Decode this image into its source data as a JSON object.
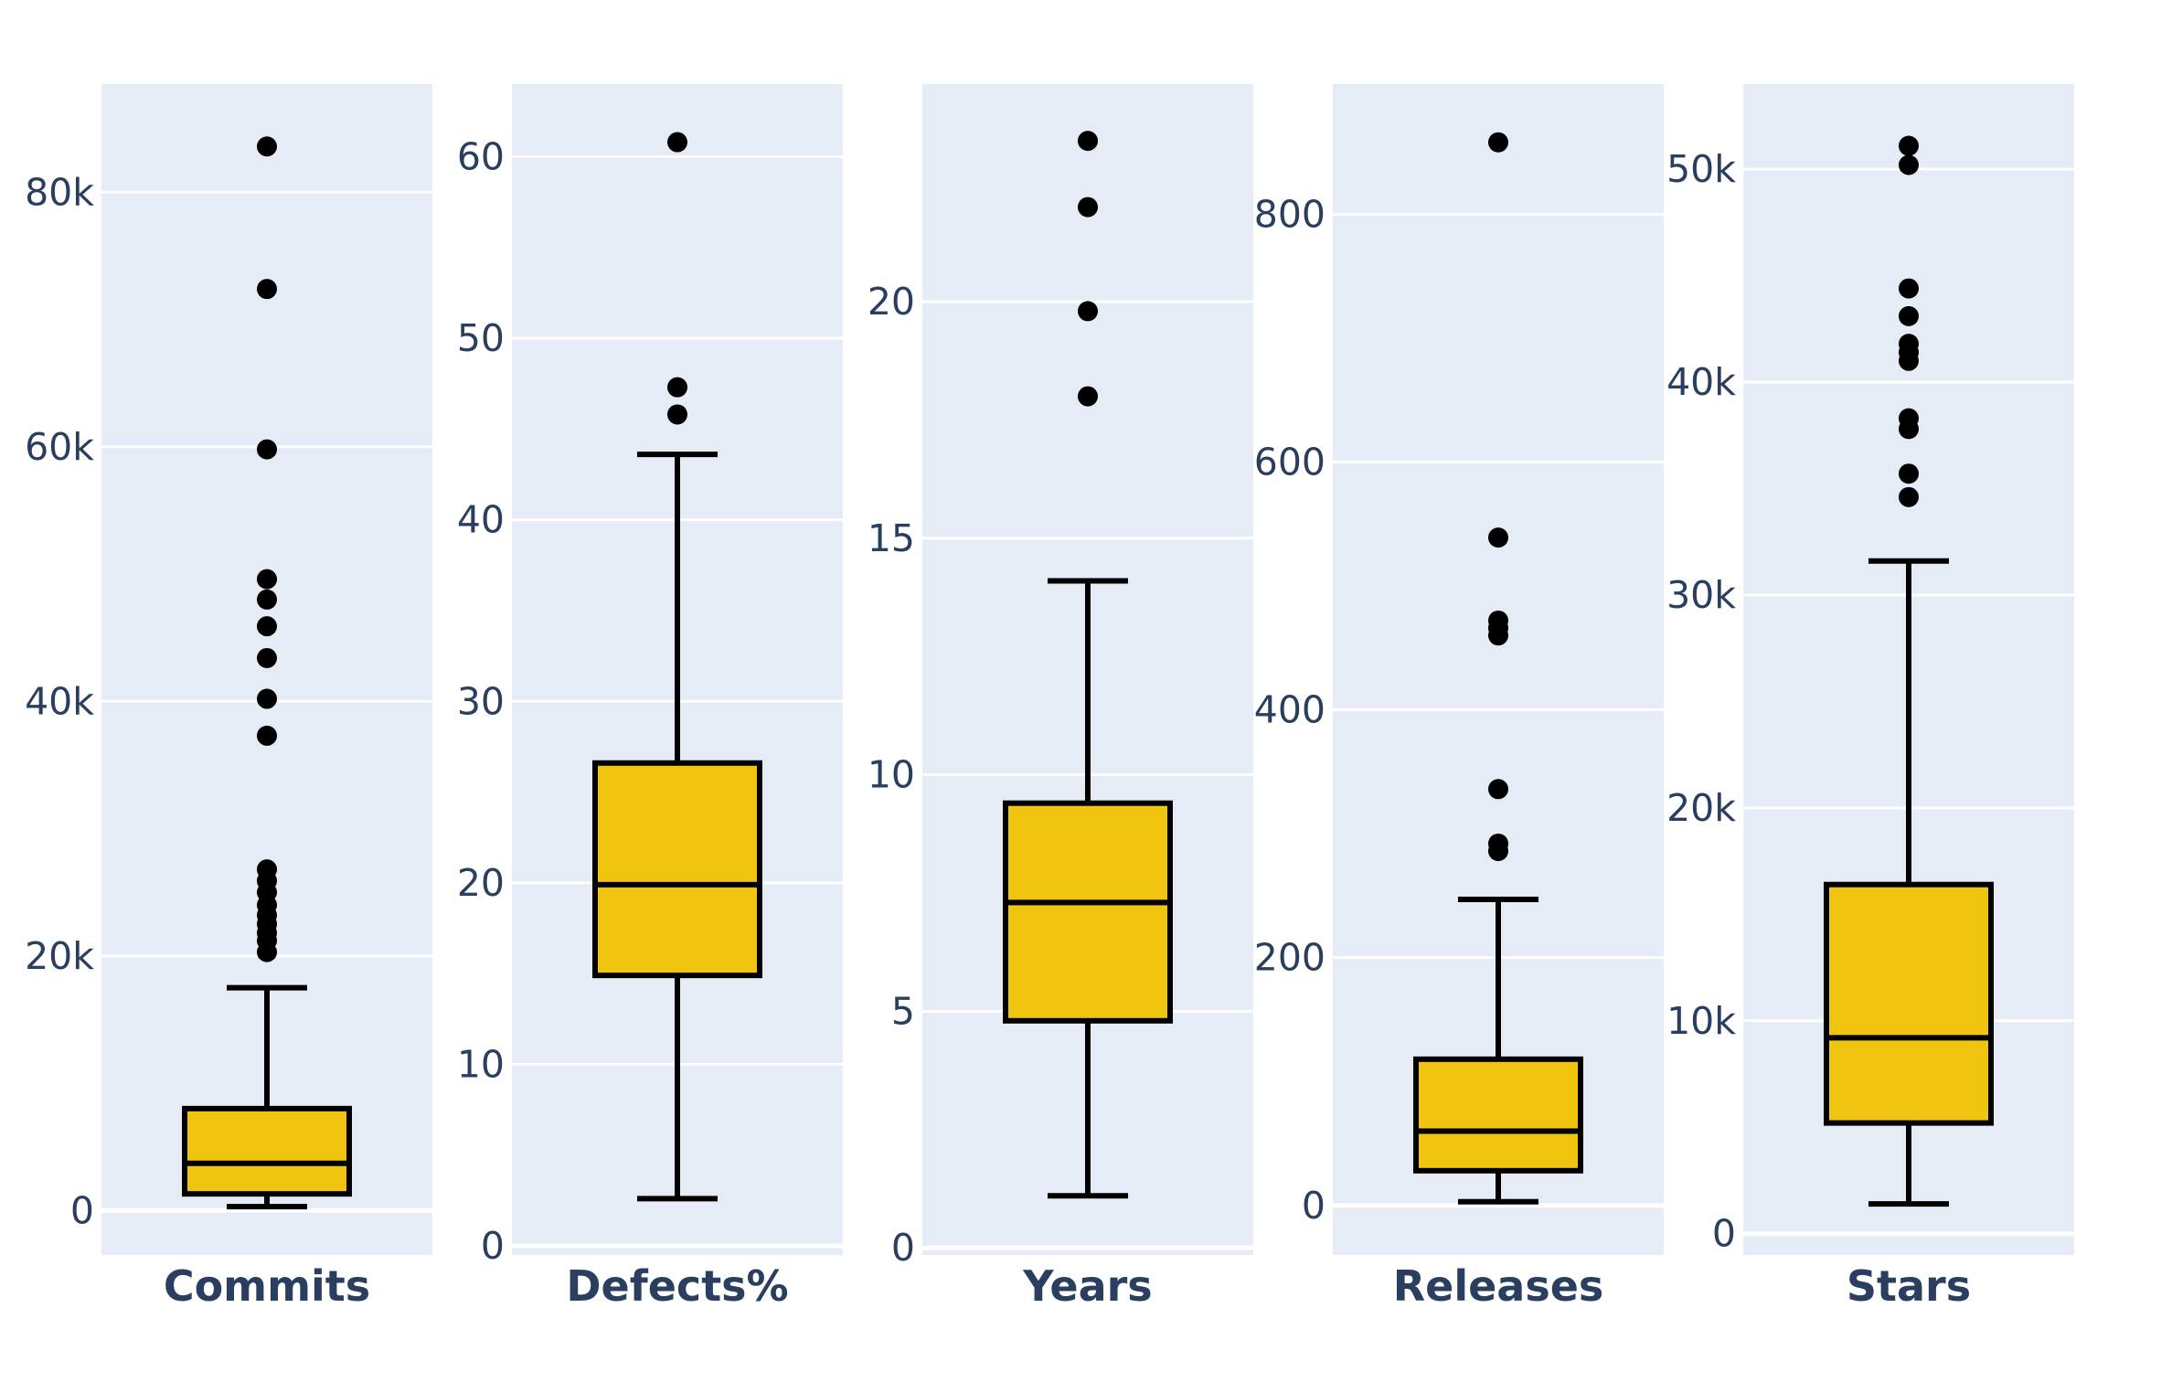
{
  "chart_data": [
    {
      "type": "box",
      "category": "Commits",
      "ylim": [
        -3500,
        88500
      ],
      "yticks": [
        0,
        20000,
        40000,
        60000,
        80000
      ],
      "ytick_labels": [
        "0",
        "20k",
        "40k",
        "60k",
        "80k"
      ],
      "min": 300,
      "q1": 1300,
      "median": 3700,
      "q3": 8000,
      "max": 17500,
      "outliers": [
        83600,
        72400,
        59800,
        49600,
        48000,
        45900,
        43400,
        40200,
        37300,
        26800,
        25900,
        25000,
        24000,
        23200,
        22500,
        21800,
        21200,
        20300
      ],
      "color": "#f1c40f"
    },
    {
      "type": "box",
      "category": "Defects%",
      "ylim": [
        -0.5,
        64.0
      ],
      "yticks": [
        0,
        10,
        20,
        30,
        40,
        50,
        60
      ],
      "ytick_labels": [
        "0",
        "10",
        "20",
        "30",
        "40",
        "50",
        "60"
      ],
      "min": 2.6,
      "q1": 14.9,
      "median": 19.9,
      "q3": 26.6,
      "max": 43.6,
      "outliers": [
        60.8,
        47.3,
        45.8
      ],
      "color": "#f1c40f"
    },
    {
      "type": "box",
      "category": "Years",
      "ylim": [
        -0.15,
        24.6
      ],
      "yticks": [
        0,
        5,
        10,
        15,
        20
      ],
      "ytick_labels": [
        "0",
        "5",
        "10",
        "15",
        "20"
      ],
      "min": 1.1,
      "q1": 4.8,
      "median": 7.3,
      "q3": 9.4,
      "max": 14.1,
      "outliers": [
        23.4,
        22.0,
        19.8,
        18.0
      ],
      "color": "#f1c40f"
    },
    {
      "type": "box",
      "category": "Releases",
      "ylim": [
        -40,
        905
      ],
      "yticks": [
        0,
        200,
        400,
        600,
        800
      ],
      "ytick_labels": [
        "0",
        "200",
        "400",
        "600",
        "800"
      ],
      "min": 3,
      "q1": 28,
      "median": 60,
      "q3": 118,
      "max": 247,
      "outliers": [
        858,
        539,
        472,
        466,
        460,
        336,
        292,
        286
      ],
      "color": "#f1c40f"
    },
    {
      "type": "box",
      "category": "Stars",
      "ylim": [
        -1000,
        54000
      ],
      "yticks": [
        0,
        10000,
        20000,
        30000,
        40000,
        50000
      ],
      "ytick_labels": [
        "0",
        "10k",
        "20k",
        "30k",
        "40k",
        "50k"
      ],
      "min": 1400,
      "q1": 5200,
      "median": 9200,
      "q3": 16400,
      "max": 31600,
      "outliers": [
        51100,
        50200,
        44400,
        43100,
        41800,
        41400,
        41000,
        38300,
        37800,
        35700,
        34600
      ],
      "color": "#f1c40f"
    }
  ]
}
